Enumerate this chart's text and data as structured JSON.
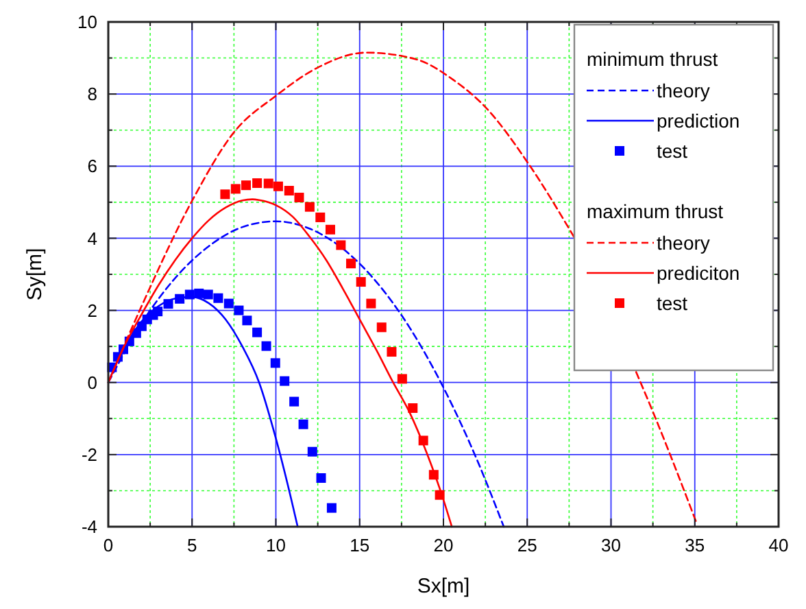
{
  "chart_data": {
    "type": "line",
    "xlabel": "Sx[m]",
    "ylabel": "Sy[m]",
    "xlim": [
      0,
      40
    ],
    "ylim": [
      -4,
      10
    ],
    "xticks": [
      0,
      {
        "value": 2.5,
        "label": null
      },
      5,
      {
        "value": 7.5,
        "label": null
      },
      10,
      {
        "value": 12.5,
        "label": null
      },
      15,
      {
        "value": 17.5,
        "label": null
      },
      20,
      {
        "value": 22.5,
        "label": null
      },
      25,
      {
        "value": 27.5,
        "label": null
      },
      30,
      {
        "value": 32.5,
        "label": null
      },
      35,
      {
        "value": 37.5,
        "label": null
      },
      40
    ],
    "yticks": [
      -4,
      {
        "value": -3,
        "label": null
      },
      -2,
      {
        "value": -1,
        "label": null
      },
      0,
      {
        "value": 1,
        "label": null
      },
      2,
      {
        "value": 3,
        "label": null
      },
      4,
      {
        "value": 5,
        "label": null
      },
      6,
      {
        "value": 7,
        "label": null
      },
      8,
      {
        "value": 9,
        "label": null
      },
      10
    ],
    "grid": true,
    "legend": "top right",
    "annotations": [
      "minimum thrust",
      "maximum thrust"
    ],
    "series": [
      {
        "name": "theory",
        "color": "#0000ff",
        "line_style": "dashed",
        "x": [
          0,
          2,
          4,
          6,
          8,
          10,
          12,
          14,
          16,
          18,
          20,
          22,
          23.6
        ],
        "values": [
          0,
          1.65,
          2.9,
          3.78,
          4.31,
          4.47,
          4.27,
          3.71,
          2.79,
          1.51,
          -0.14,
          -2.14,
          -4.0
        ]
      },
      {
        "name": "prediction",
        "color": "#0000ff",
        "line_style": "solid",
        "x": [
          0,
          0.5,
          1,
          2,
          3,
          4,
          5,
          6,
          7,
          8,
          9,
          10,
          11,
          11.3
        ],
        "values": [
          0,
          0.55,
          1.0,
          1.7,
          2.12,
          2.33,
          2.37,
          2.2,
          1.75,
          1.0,
          0.0,
          -1.55,
          -3.4,
          -4.0
        ]
      },
      {
        "name": "test",
        "color": "#0000ff",
        "type": "scatter",
        "marker": "square",
        "x": [
          0.22,
          0.57,
          0.9,
          1.26,
          1.67,
          2.0,
          2.32,
          2.68,
          2.95,
          3.58,
          4.26,
          4.86,
          5.41,
          5.96,
          6.56,
          7.19,
          7.79,
          8.28,
          8.88,
          9.43,
          9.97,
          10.52,
          11.09,
          11.64,
          12.18,
          12.7,
          13.33
        ],
        "values": [
          0.42,
          0.71,
          0.92,
          1.14,
          1.37,
          1.56,
          1.75,
          1.87,
          1.97,
          2.18,
          2.32,
          2.44,
          2.47,
          2.44,
          2.34,
          2.19,
          2.0,
          1.72,
          1.39,
          1.01,
          0.54,
          0.04,
          -0.53,
          -1.16,
          -1.92,
          -2.65,
          -3.48
        ]
      },
      {
        "name": "theory",
        "color": "#ff0000",
        "line_style": "dashed",
        "x": [
          0,
          2,
          5,
          7.5,
          10,
          12.4,
          15.4,
          18.4,
          20.6,
          22.5,
          25.1,
          27.8,
          29,
          31.5,
          32.7,
          35.1
        ],
        "values": [
          0,
          2.13,
          5.04,
          6.94,
          7.95,
          8.71,
          9.15,
          8.96,
          8.39,
          7.64,
          6.05,
          4.03,
          null,
          0.29,
          -1.04,
          -3.89
        ]
      },
      {
        "name": "prediciton",
        "color": "#ff0000",
        "line_style": "solid",
        "x": [
          0,
          1,
          2,
          3,
          4,
          5,
          6,
          7,
          8,
          8.6,
          9,
          10,
          11,
          12,
          13,
          14,
          15,
          16,
          17,
          18,
          19,
          20,
          20.5
        ],
        "values": [
          0,
          1.05,
          1.9,
          2.7,
          3.4,
          4.0,
          4.5,
          4.85,
          5.05,
          5.08,
          5.06,
          4.92,
          4.6,
          4.05,
          3.4,
          2.6,
          1.75,
          0.9,
          0.0,
          -0.85,
          -1.95,
          -3.25,
          -4.0
        ]
      },
      {
        "name": "test",
        "color": "#ff0000",
        "type": "scatter",
        "marker": "square",
        "x": [
          6.97,
          7.6,
          8.22,
          8.88,
          9.56,
          10.14,
          10.79,
          11.39,
          12.02,
          12.65,
          13.25,
          13.88,
          14.48,
          15.08,
          15.68,
          16.31,
          16.91,
          17.54,
          18.17,
          18.8,
          19.42,
          19.78
        ],
        "values": [
          5.22,
          5.37,
          5.47,
          5.53,
          5.52,
          5.44,
          5.32,
          5.13,
          4.87,
          4.58,
          4.24,
          3.81,
          3.3,
          2.79,
          2.19,
          1.53,
          0.85,
          0.1,
          -0.71,
          -1.61,
          -2.56,
          -3.12
        ]
      }
    ]
  }
}
